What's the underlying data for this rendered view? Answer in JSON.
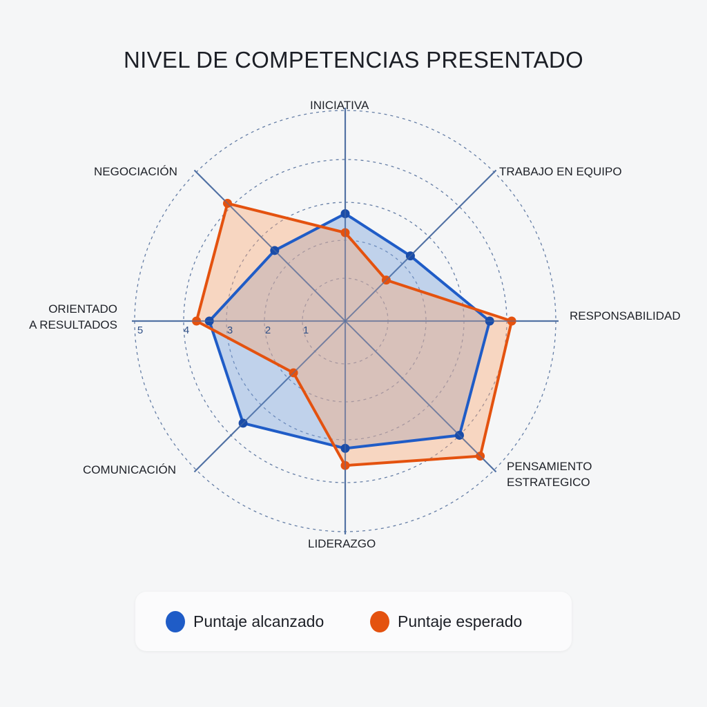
{
  "title": "NIVEL DE COMPETENCIAS PRESENTADO",
  "legend": {
    "items": [
      {
        "label": "Puntaje alcanzado",
        "color": "#1f5cc7"
      },
      {
        "label": "Puntaje esperado",
        "color": "#e4520f"
      }
    ]
  },
  "axis_labels": {
    "iniciativa": "INICIATIVA",
    "trabajo_equipo": "TRABAJO EN EQUIPO",
    "responsabilidad": "RESPONSABILIDAD",
    "pensamiento_1": "PENSAMIENTO",
    "pensamiento_2": "ESTRATEGICO",
    "liderazgo": "LIDERAZGO",
    "comunicacion": "COMUNICACIÓN",
    "orientado_1": "ORIENTADO",
    "orientado_2": "A RESULTADOS",
    "negociacion": "NEGOCIACIÓN"
  },
  "scale_labels": [
    "1",
    "2",
    "3",
    "4",
    "5"
  ],
  "chart_data": {
    "type": "radar",
    "title": "NIVEL DE COMPETENCIAS PRESENTADO",
    "categories": [
      "INICIATIVA",
      "TRABAJO EN EQUIPO",
      "RESPONSABILIDAD",
      "PENSAMIENTO ESTRATEGICO",
      "LIDERAZGO",
      "COMUNICACIÓN",
      "ORIENTADO A RESULTADOS",
      "NEGOCIACIÓN"
    ],
    "series": [
      {
        "name": "Puntaje alcanzado",
        "color": "#1f5cc7",
        "values": [
          2.7,
          2.3,
          3.6,
          4.0,
          3.2,
          3.6,
          3.4,
          2.5
        ]
      },
      {
        "name": "Puntaje esperado",
        "color": "#e4520f",
        "values": [
          2.2,
          1.4,
          4.1,
          4.6,
          3.6,
          1.8,
          3.7,
          4.1
        ]
      }
    ],
    "rlim": [
      0,
      5
    ],
    "rticks": [
      1,
      2,
      3,
      4,
      5
    ],
    "grid": true,
    "legend_position": "bottom"
  }
}
